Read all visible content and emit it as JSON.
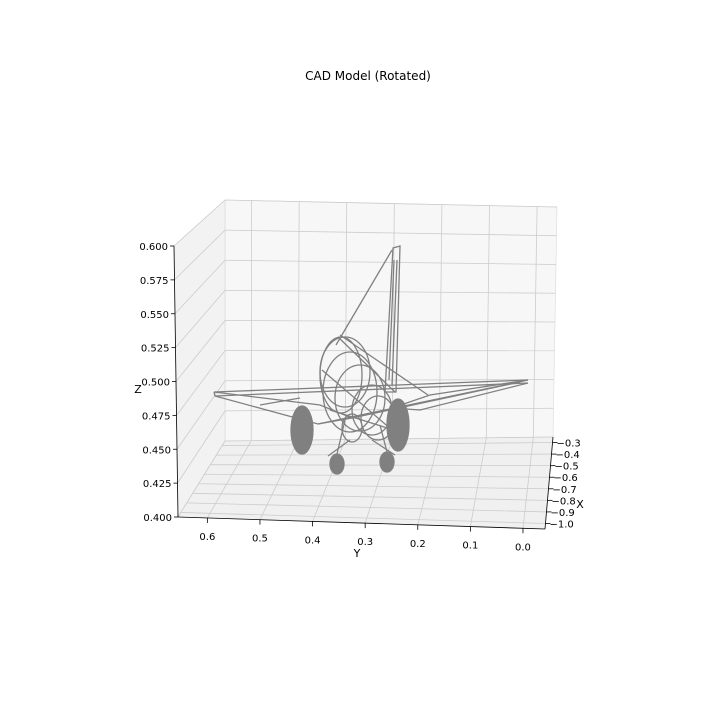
{
  "chart_data": {
    "type": "3d-wireframe",
    "title": "CAD Model (Rotated)",
    "xlabel": "X",
    "ylabel": "Y",
    "zlabel": "Z",
    "x_ticks": [
      "−1.0",
      "−0.9",
      "−0.8",
      "−0.7",
      "−0.6",
      "−0.5",
      "−0.4",
      "−0.3"
    ],
    "y_ticks": [
      "0.6",
      "0.5",
      "0.4",
      "0.3",
      "0.2",
      "0.1",
      "0.0"
    ],
    "z_ticks": [
      "0.400",
      "0.425",
      "0.450",
      "0.475",
      "0.500",
      "0.525",
      "0.550",
      "0.575",
      "0.600"
    ],
    "xlim": [
      -1.0,
      -0.3
    ],
    "ylim": [
      0.0,
      0.6
    ],
    "zlim": [
      0.4,
      0.6
    ],
    "grid": true,
    "series": [
      {
        "values": [],
        "color": "#808080"
      }
    ]
  }
}
